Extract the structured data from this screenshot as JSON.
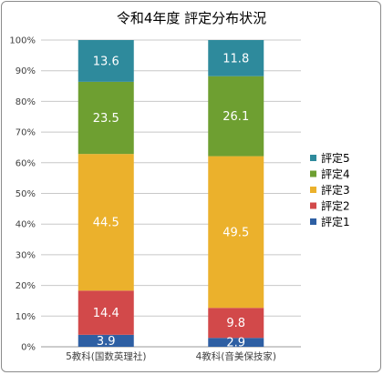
{
  "chart_data": {
    "type": "bar",
    "stacked": true,
    "percent": true,
    "title": "令和4年度 評定分布状況",
    "categories": [
      "5教科(国数英理社)",
      "4教科(音美保技家)"
    ],
    "y_ticks": [
      "0%",
      "10%",
      "20%",
      "30%",
      "40%",
      "50%",
      "60%",
      "70%",
      "80%",
      "90%",
      "100%"
    ],
    "ylim": [
      0,
      100
    ],
    "grid": true,
    "legend_position": "right",
    "series": [
      {
        "name": "評定1",
        "color": "#2e5fa3",
        "values": [
          3.9,
          2.9
        ],
        "labels": [
          "3.9",
          "2.9"
        ]
      },
      {
        "name": "評定2",
        "color": "#d2494a",
        "values": [
          14.4,
          9.8
        ],
        "labels": [
          "14.4",
          "9.8"
        ]
      },
      {
        "name": "評定3",
        "color": "#ebb12c",
        "values": [
          44.5,
          49.5
        ],
        "labels": [
          "44.5",
          "49.5"
        ]
      },
      {
        "name": "評定4",
        "color": "#6e9f31",
        "values": [
          23.5,
          26.1
        ],
        "labels": [
          "23.5",
          "26.1"
        ]
      },
      {
        "name": "評定5",
        "color": "#2e8a9c",
        "values": [
          13.6,
          11.8
        ],
        "labels": [
          "13.6",
          "11.8"
        ]
      }
    ],
    "legend_order": [
      "評定5",
      "評定4",
      "評定3",
      "評定2",
      "評定1"
    ]
  }
}
